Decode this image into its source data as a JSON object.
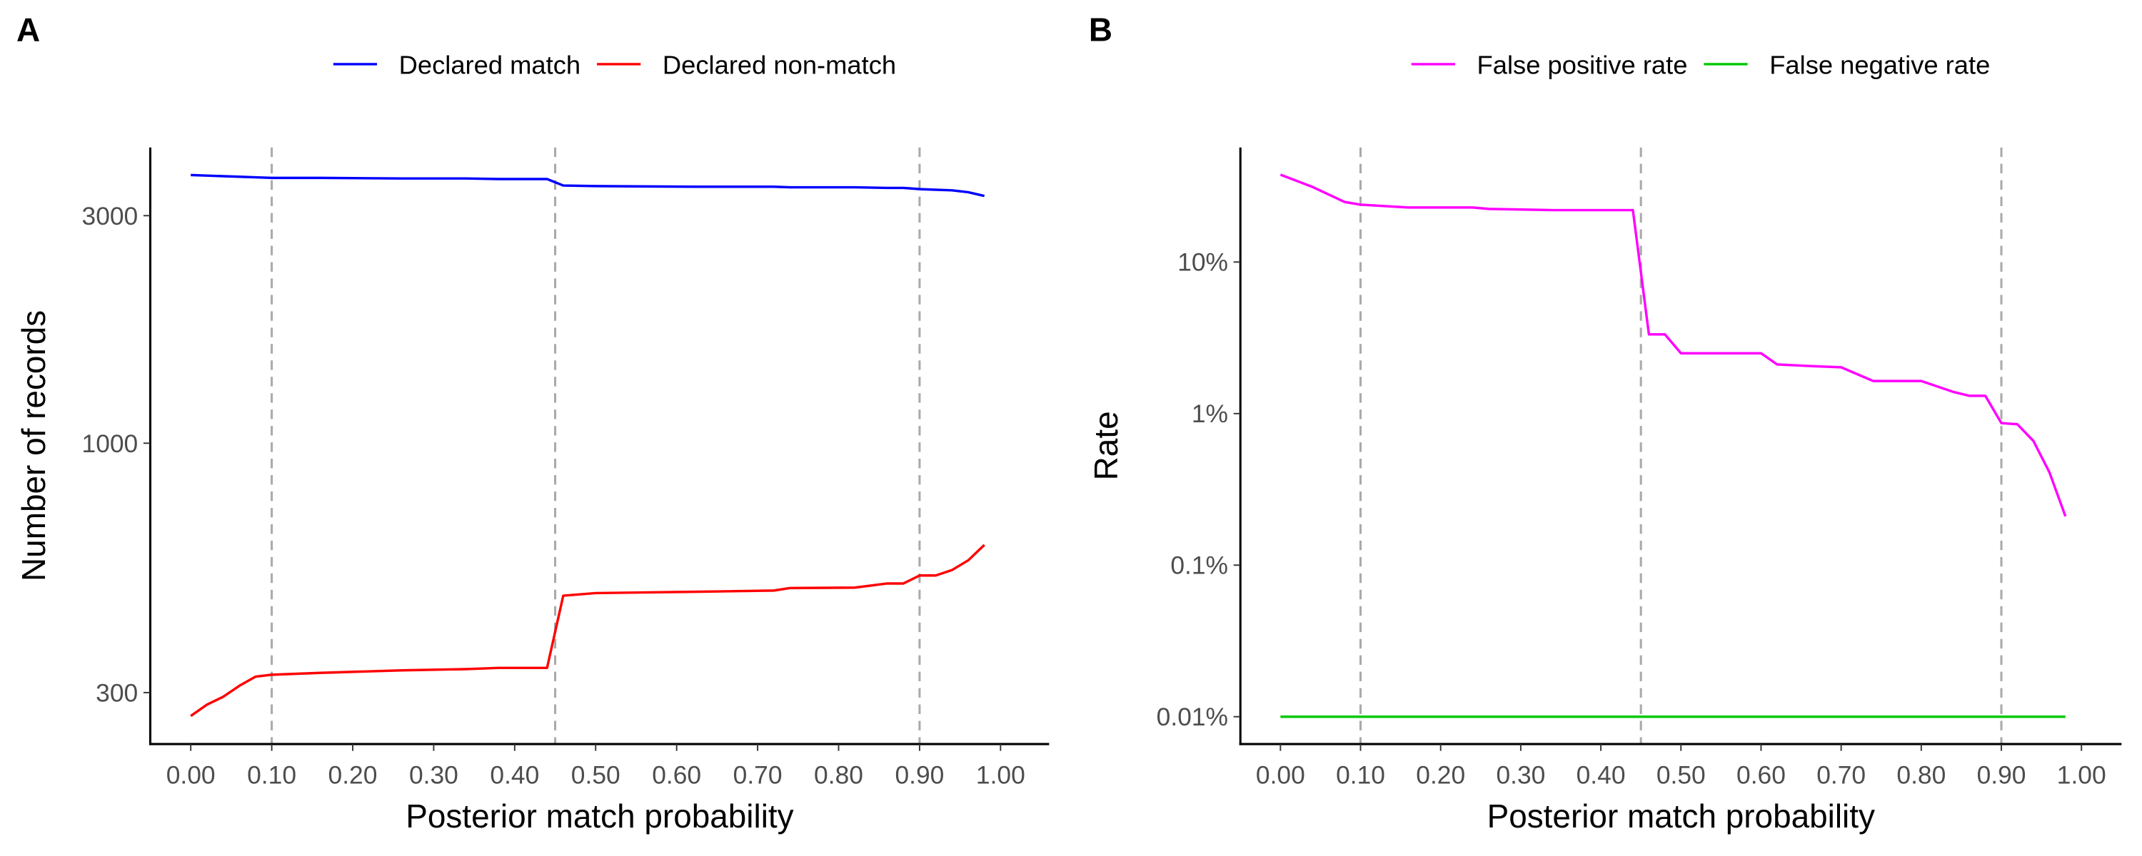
{
  "chart_data": [
    {
      "type": "line",
      "panel": "A",
      "log_y": true,
      "x_label": "Posterior match probability",
      "y_label": "Number of records",
      "x": [
        0,
        0.02,
        0.04,
        0.06,
        0.08,
        0.1,
        0.16,
        0.26,
        0.34,
        0.38,
        0.44,
        0.46,
        0.5,
        0.62,
        0.72,
        0.74,
        0.82,
        0.86,
        0.88,
        0.9,
        0.92,
        0.94,
        0.96,
        0.98
      ],
      "series": [
        {
          "name": "Declared match",
          "color": "#0000ff",
          "values": [
            3650,
            3640,
            3630,
            3620,
            3610,
            3600,
            3600,
            3590,
            3590,
            3580,
            3580,
            3470,
            3460,
            3450,
            3450,
            3440,
            3440,
            3430,
            3430,
            3410,
            3400,
            3390,
            3360,
            3300
          ]
        },
        {
          "name": "Declared non-match",
          "color": "#ff0000",
          "values": [
            268,
            283,
            294,
            310,
            324,
            327,
            330,
            334,
            336,
            338,
            338,
            479,
            485,
            488,
            491,
            497,
            498,
            508,
            508,
            528,
            528,
            542,
            568,
            612
          ]
        }
      ],
      "xlim": [
        -0.05,
        1.06
      ],
      "ylim": [
        234,
        4170
      ],
      "xticks": [
        {
          "value": 0,
          "label": "0.00"
        },
        {
          "value": 0.1,
          "label": "0.10"
        },
        {
          "value": 0.2,
          "label": "0.20"
        },
        {
          "value": 0.3,
          "label": "0.30"
        },
        {
          "value": 0.4,
          "label": "0.40"
        },
        {
          "value": 0.5,
          "label": "0.50"
        },
        {
          "value": 0.6,
          "label": "0.60"
        },
        {
          "value": 0.7,
          "label": "0.70"
        },
        {
          "value": 0.8,
          "label": "0.80"
        },
        {
          "value": 0.9,
          "label": "0.90"
        },
        {
          "value": 1,
          "label": "1.00"
        }
      ],
      "yticks": [
        300,
        1000,
        3000
      ],
      "vlines": [
        0.1,
        0.45,
        0.9
      ],
      "grid": false,
      "legend": "top"
    },
    {
      "type": "line",
      "panel": "B",
      "log_y": true,
      "x_label": "Posterior match probability",
      "y_label": "Rate",
      "x": [
        0,
        0.04,
        0.08,
        0.1,
        0.16,
        0.24,
        0.26,
        0.34,
        0.44,
        0.46,
        0.48,
        0.5,
        0.6,
        0.62,
        0.66,
        0.7,
        0.74,
        0.8,
        0.84,
        0.86,
        0.88,
        0.9,
        0.92,
        0.94,
        0.96,
        0.98
      ],
      "series": [
        {
          "name": "False positive rate",
          "color": "#ff00ff",
          "values": [
            37.7,
            31.3,
            24.9,
            23.9,
            22.9,
            22.9,
            22.4,
            22.0,
            22.0,
            3.33,
            3.33,
            2.5,
            2.5,
            2.11,
            2.06,
            2.02,
            1.64,
            1.64,
            1.39,
            1.31,
            1.31,
            0.865,
            0.85,
            0.66,
            0.41,
            0.21
          ]
        },
        {
          "name": "False negative rate",
          "color": "#00c800",
          "values": [
            0.01,
            0.01,
            0.01,
            0.01,
            0.01,
            0.01,
            0.01,
            0.01,
            0.01,
            0.01,
            0.01,
            0.01,
            0.01,
            0.01,
            0.01,
            0.01,
            0.01,
            0.01,
            0.01,
            0.01,
            0.01,
            0.01,
            0.01,
            0.01,
            0.01,
            0.01
          ]
        }
      ],
      "xlim": [
        -0.05,
        1.05
      ],
      "ylim": [
        0.0066,
        57
      ],
      "xticks": [
        {
          "value": 0,
          "label": "0.00"
        },
        {
          "value": 0.1,
          "label": "0.10"
        },
        {
          "value": 0.2,
          "label": "0.20"
        },
        {
          "value": 0.3,
          "label": "0.30"
        },
        {
          "value": 0.4,
          "label": "0.40"
        },
        {
          "value": 0.5,
          "label": "0.50"
        },
        {
          "value": 0.6,
          "label": "0.60"
        },
        {
          "value": 0.7,
          "label": "0.70"
        },
        {
          "value": 0.8,
          "label": "0.80"
        },
        {
          "value": 0.9,
          "label": "0.90"
        },
        {
          "value": 1,
          "label": "1.00"
        }
      ],
      "yticks": [
        {
          "value": 0.01,
          "label": "0.01%"
        },
        {
          "value": 0.1,
          "label": "0.1%"
        },
        {
          "value": 1,
          "label": "1%"
        },
        {
          "value": 10,
          "label": "10%"
        }
      ],
      "vlines": [
        0.1,
        0.45,
        0.9
      ],
      "grid": false,
      "legend": "top"
    }
  ]
}
